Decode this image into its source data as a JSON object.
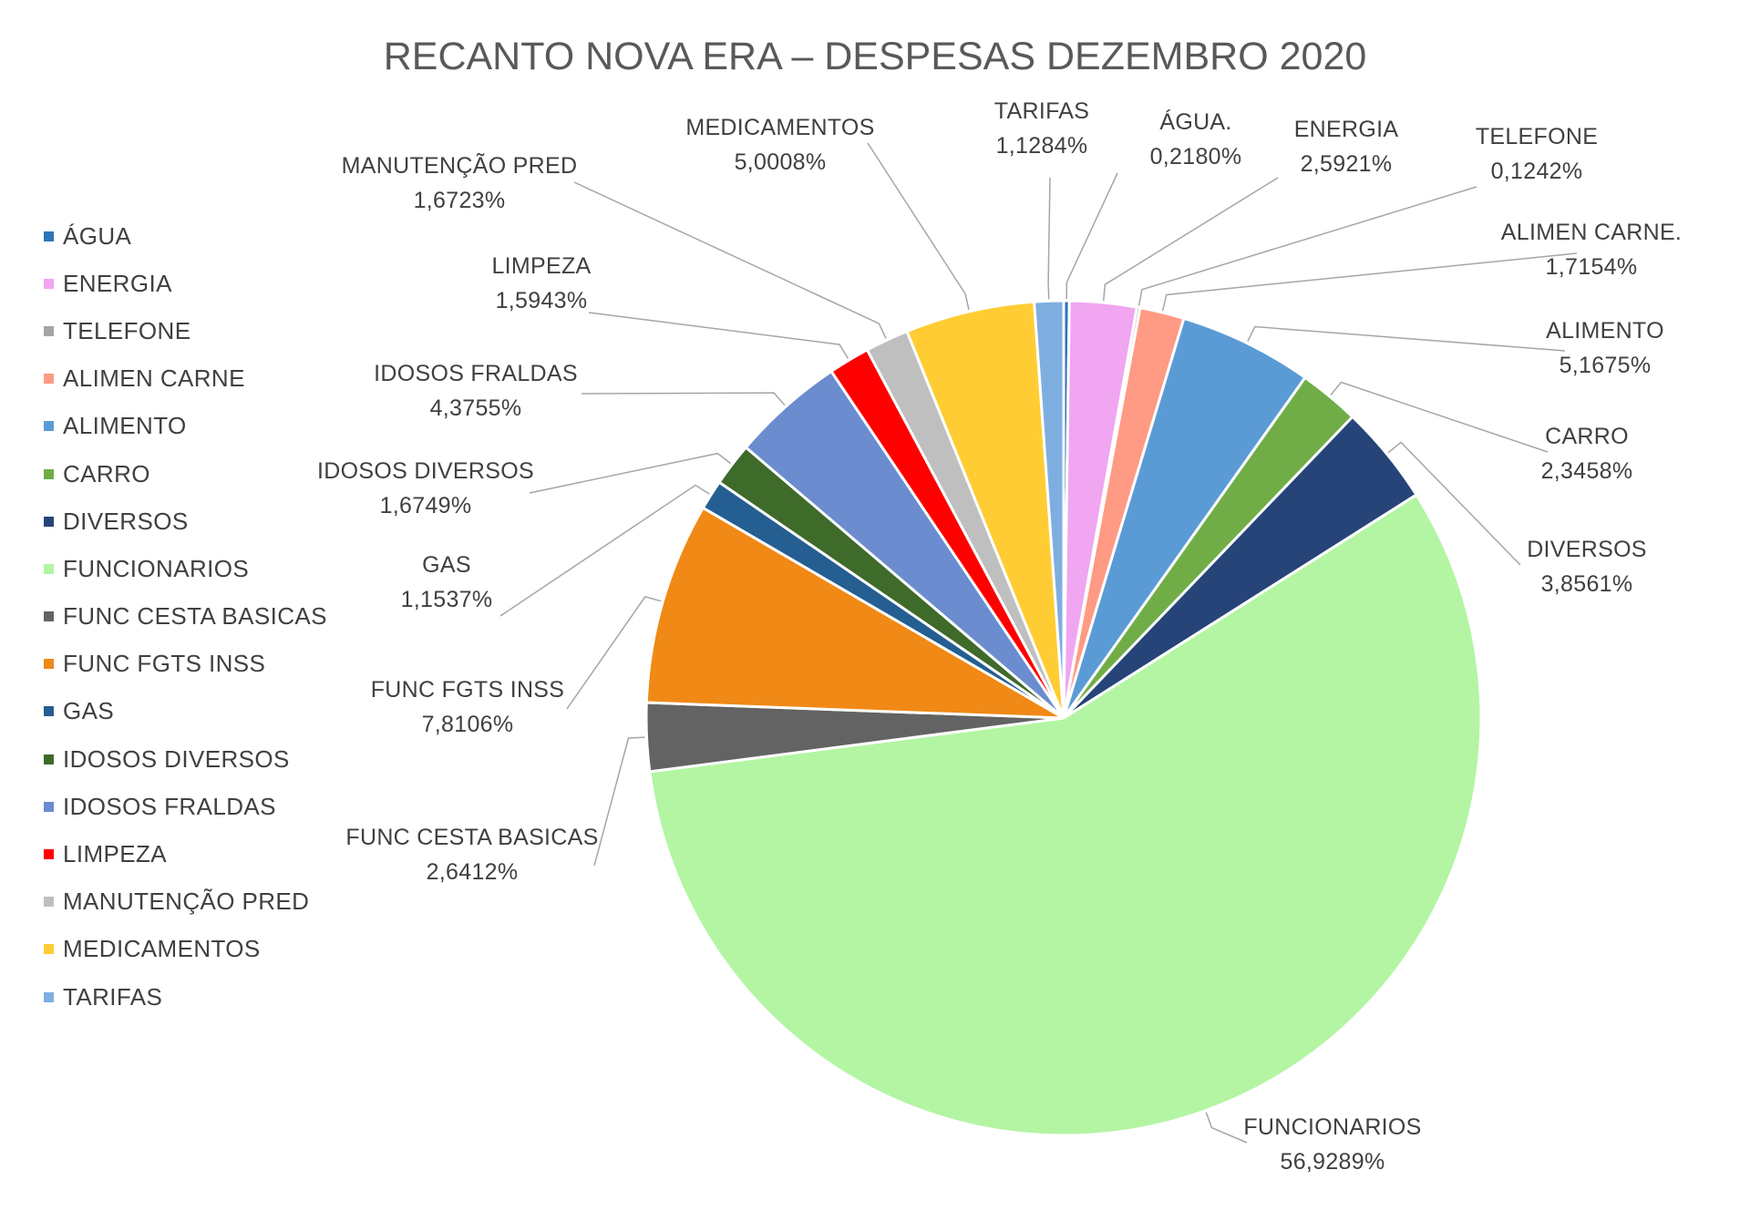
{
  "chart_data": {
    "type": "pie",
    "title": "RECANTO NOVA ERA – DESPESAS DEZEMBRO 2020",
    "legend_position": "left",
    "slices": [
      {
        "legend": "ÁGUA",
        "label": "ÁGUA.",
        "percent_text": "0,2180%",
        "value": 0.218,
        "color": "#2E75B6"
      },
      {
        "legend": "ENERGIA",
        "label": "ENERGIA",
        "percent_text": "2,5921%",
        "value": 2.5921,
        "color": "#F0A6F0"
      },
      {
        "legend": "TELEFONE",
        "label": "TELEFONE",
        "percent_text": "0,1242%",
        "value": 0.1242,
        "color": "#A5A5A5"
      },
      {
        "legend": "ALIMEN CARNE",
        "label": "ALIMEN CARNE.",
        "percent_text": "1,7154%",
        "value": 1.7154,
        "color": "#FF9A84"
      },
      {
        "legend": "ALIMENTO",
        "label": "ALIMENTO",
        "percent_text": "5,1675%",
        "value": 5.1675,
        "color": "#5B9BD5"
      },
      {
        "legend": "CARRO",
        "label": "CARRO",
        "percent_text": "2,3458%",
        "value": 2.3458,
        "color": "#70AD47"
      },
      {
        "legend": "DIVERSOS",
        "label": "DIVERSOS",
        "percent_text": "3,8561%",
        "value": 3.8561,
        "color": "#264478"
      },
      {
        "legend": "FUNCIONARIOS",
        "label": "FUNCIONARIOS",
        "percent_text": "56,9289%",
        "value": 56.9289,
        "color": "#B3F5A3"
      },
      {
        "legend": "FUNC CESTA BASICAS",
        "label": "FUNC CESTA BASICAS",
        "percent_text": "2,6412%",
        "value": 2.6412,
        "color": "#636363"
      },
      {
        "legend": "FUNC FGTS INSS",
        "label": "FUNC FGTS INSS",
        "percent_text": "7,8106%",
        "value": 7.8106,
        "color": "#F08916"
      },
      {
        "legend": "GAS",
        "label": "GAS",
        "percent_text": "1,1537%",
        "value": 1.1537,
        "color": "#255E91"
      },
      {
        "legend": "IDOSOS DIVERSOS",
        "label": "IDOSOS DIVERSOS",
        "percent_text": "1,6749%",
        "value": 1.6749,
        "color": "#3E6A2A"
      },
      {
        "legend": "IDOSOS FRALDAS",
        "label": "IDOSOS FRALDAS",
        "percent_text": "4,3755%",
        "value": 4.3755,
        "color": "#6B8CCF"
      },
      {
        "legend": "LIMPEZA",
        "label": "LIMPEZA",
        "percent_text": "1,5943%",
        "value": 1.5943,
        "color": "#FF0000"
      },
      {
        "legend": "MANUTENÇÃO PRED",
        "label": "MANUTENÇÃO PRED",
        "percent_text": "1,6723%",
        "value": 1.6723,
        "color": "#BFBFBF"
      },
      {
        "legend": "MEDICAMENTOS",
        "label": "MEDICAMENTOS",
        "percent_text": "5,0008%",
        "value": 5.0008,
        "color": "#FFCD33"
      },
      {
        "legend": "TARIFAS",
        "label": "TARIFAS",
        "percent_text": "1,1284%",
        "value": 1.1284,
        "color": "#7EAEE0"
      }
    ]
  }
}
